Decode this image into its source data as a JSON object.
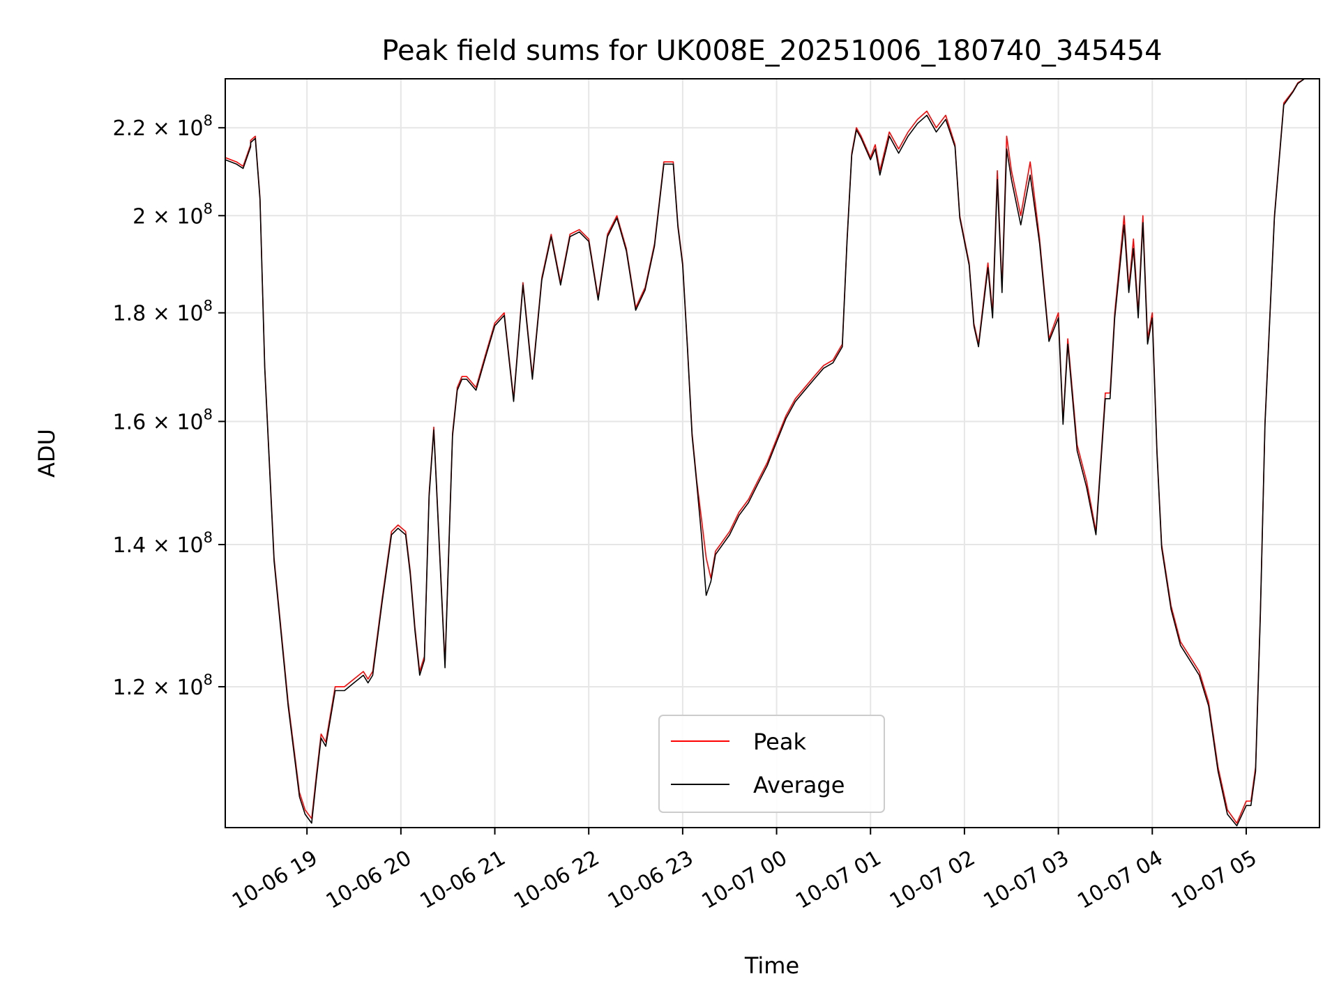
{
  "chart_data": {
    "type": "line",
    "title": "Peak field sums for UK008E_20251006_180740_345454",
    "xlabel": "Time",
    "ylabel": "ADU",
    "yscale": "log",
    "ylim": [
      103000000,
      232000000
    ],
    "xlim_hours": [
      -0.87,
      10.78
    ],
    "grid": true,
    "legend_position": "lower center",
    "x_ticks": [
      {
        "hour": 0,
        "label": "10-06 19"
      },
      {
        "hour": 1,
        "label": "10-06 20"
      },
      {
        "hour": 2,
        "label": "10-06 21"
      },
      {
        "hour": 3,
        "label": "10-06 22"
      },
      {
        "hour": 4,
        "label": "10-06 23"
      },
      {
        "hour": 5,
        "label": "10-07 00"
      },
      {
        "hour": 6,
        "label": "10-07 01"
      },
      {
        "hour": 7,
        "label": "10-07 02"
      },
      {
        "hour": 8,
        "label": "10-07 03"
      },
      {
        "hour": 9,
        "label": "10-07 04"
      },
      {
        "hour": 10,
        "label": "10-07 05"
      }
    ],
    "y_ticks": [
      {
        "value": 120000000,
        "mantissa": "1.2",
        "exponent": "8"
      },
      {
        "value": 140000000,
        "mantissa": "1.4",
        "exponent": "8"
      },
      {
        "value": 160000000,
        "mantissa": "1.6",
        "exponent": "8"
      },
      {
        "value": 180000000,
        "mantissa": "1.8",
        "exponent": "8"
      },
      {
        "value": 200000000,
        "mantissa": "2",
        "exponent": "8"
      },
      {
        "value": 220000000,
        "mantissa": "2.2",
        "exponent": "8"
      }
    ],
    "times_hours_after_19": [
      -0.87,
      -0.75,
      -0.68,
      -0.6,
      -0.6,
      -0.55,
      -0.5,
      -0.45,
      -0.35,
      -0.2,
      -0.08,
      -0.02,
      0.05,
      0.1,
      0.15,
      0.2,
      0.3,
      0.4,
      0.5,
      0.6,
      0.65,
      0.7,
      0.8,
      0.9,
      0.97,
      1.05,
      1.1,
      1.15,
      1.2,
      1.25,
      1.3,
      1.35,
      1.4,
      1.47,
      1.55,
      1.6,
      1.65,
      1.7,
      1.8,
      1.9,
      2.0,
      2.1,
      2.2,
      2.3,
      2.4,
      2.5,
      2.6,
      2.7,
      2.8,
      2.9,
      3.0,
      3.1,
      3.2,
      3.3,
      3.4,
      3.5,
      3.6,
      3.7,
      3.8,
      3.9,
      3.95,
      4.0,
      4.05,
      4.1,
      4.15,
      4.2,
      4.25,
      4.3,
      4.35,
      4.4,
      4.5,
      4.6,
      4.7,
      4.8,
      4.9,
      5.0,
      5.1,
      5.2,
      5.3,
      5.4,
      5.5,
      5.6,
      5.7,
      5.75,
      5.8,
      5.85,
      5.9,
      6.0,
      6.05,
      6.1,
      6.2,
      6.3,
      6.4,
      6.5,
      6.6,
      6.7,
      6.8,
      6.9,
      6.95,
      7.05,
      7.1,
      7.15,
      7.25,
      7.3,
      7.35,
      7.4,
      7.45,
      7.5,
      7.6,
      7.7,
      7.8,
      7.9,
      8.0,
      8.05,
      8.1,
      8.2,
      8.3,
      8.4,
      8.5,
      8.55,
      8.6,
      8.7,
      8.75,
      8.8,
      8.85,
      8.9,
      8.95,
      9.0,
      9.05,
      9.1,
      9.2,
      9.3,
      9.4,
      9.5,
      9.6,
      9.7,
      9.8,
      9.9,
      10.0,
      10.05,
      10.1,
      10.15,
      10.2,
      10.3,
      10.4,
      10.5,
      10.55,
      10.62,
      10.7,
      10.78
    ],
    "series": [
      {
        "name": "Peak",
        "color": "#ff0000",
        "values": [
          213000000,
          212000000,
          211000000,
          216000000,
          217000000,
          218000000,
          204000000,
          170000000,
          138000000,
          118000000,
          107000000,
          105000000,
          104000000,
          109000000,
          114000000,
          113000000,
          120000000,
          120000000,
          121000000,
          122000000,
          121000000,
          122000000,
          132000000,
          142000000,
          143000000,
          142000000,
          136000000,
          128000000,
          122000000,
          124000000,
          148000000,
          159000000,
          143000000,
          123000000,
          158000000,
          166000000,
          168000000,
          168000000,
          166000000,
          172000000,
          178000000,
          180000000,
          164000000,
          186000000,
          168000000,
          187000000,
          196000000,
          186000000,
          196000000,
          197000000,
          195000000,
          183000000,
          196000000,
          200000000,
          193000000,
          181000000,
          185000000,
          194000000,
          212000000,
          212000000,
          198000000,
          190000000,
          174000000,
          158000000,
          150000000,
          144000000,
          138000000,
          135000000,
          139000000,
          140000000,
          142000000,
          145000000,
          147000000,
          150000000,
          153000000,
          157000000,
          161000000,
          164000000,
          166000000,
          168000000,
          170000000,
          171000000,
          174000000,
          195000000,
          214000000,
          220000000,
          218000000,
          213000000,
          216000000,
          210000000,
          219000000,
          215000000,
          219000000,
          222000000,
          224000000,
          220000000,
          223000000,
          216000000,
          200000000,
          190000000,
          178000000,
          174000000,
          190000000,
          180000000,
          210000000,
          185000000,
          218000000,
          210000000,
          200000000,
          212000000,
          195000000,
          175000000,
          180000000,
          160000000,
          175000000,
          156000000,
          150000000,
          142000000,
          165000000,
          165000000,
          180000000,
          200000000,
          185000000,
          195000000,
          180000000,
          200000000,
          175000000,
          180000000,
          155000000,
          140000000,
          131000000,
          126000000,
          124000000,
          122000000,
          118000000,
          110000000,
          105000000,
          103500000,
          106000000,
          106000000,
          110000000,
          130000000,
          160000000,
          200000000,
          226000000,
          229000000,
          231000000,
          232000000
        ]
      },
      {
        "name": "Average",
        "color": "#000000",
        "values": [
          212500000,
          211500000,
          210500000,
          215500000,
          216500000,
          217500000,
          203500000,
          169500000,
          137500000,
          117500000,
          106500000,
          104500000,
          103500000,
          108500000,
          113500000,
          112500000,
          119500000,
          119500000,
          120500000,
          121500000,
          120500000,
          121500000,
          131500000,
          141500000,
          142500000,
          141500000,
          135500000,
          127500000,
          121500000,
          123500000,
          147500000,
          158500000,
          142500000,
          122500000,
          157500000,
          165500000,
          167500000,
          167500000,
          165500000,
          171500000,
          177500000,
          179500000,
          163500000,
          185500000,
          167500000,
          186500000,
          195500000,
          185500000,
          195500000,
          196500000,
          194500000,
          182500000,
          195500000,
          199500000,
          192500000,
          180500000,
          184500000,
          193500000,
          211500000,
          211500000,
          197500000,
          189500000,
          173500000,
          157500000,
          149500000,
          141500000,
          132500000,
          134500000,
          138500000,
          139500000,
          141500000,
          144500000,
          146500000,
          149500000,
          152500000,
          156500000,
          160500000,
          163500000,
          165500000,
          167500000,
          169500000,
          170500000,
          173500000,
          194500000,
          213500000,
          219500000,
          217500000,
          212500000,
          215000000,
          209000000,
          218000000,
          214000000,
          218000000,
          221000000,
          223000000,
          219000000,
          222000000,
          215500000,
          199500000,
          189500000,
          177500000,
          173500000,
          189000000,
          179000000,
          208000000,
          184000000,
          215000000,
          208000000,
          198000000,
          209000000,
          194000000,
          174500000,
          179000000,
          159500000,
          174000000,
          155000000,
          149000000,
          141500000,
          164000000,
          164000000,
          179000000,
          198000000,
          184000000,
          193000000,
          179000000,
          198500000,
          174000000,
          179000000,
          154500000,
          139500000,
          130500000,
          125500000,
          123500000,
          121500000,
          117500000,
          109500000,
          104500000,
          103200000,
          105500000,
          105500000,
          109500000,
          129500000,
          159500000,
          199500000,
          225500000,
          228800000,
          230800000,
          232000000
        ]
      }
    ]
  }
}
